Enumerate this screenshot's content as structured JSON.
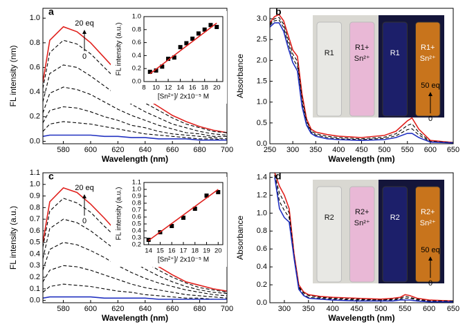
{
  "chart_data": [
    {
      "type": "line",
      "label": "a",
      "xlabel": "Wavelength (nm)",
      "ylabel": "FL intensity (nm)",
      "xlim": [
        565,
        700
      ],
      "xticks": [
        580,
        600,
        620,
        640,
        660,
        680,
        700
      ],
      "ylim": [
        -0.02,
        1.08
      ],
      "yticks": [
        {
          "value": 0,
          "label": "0.0"
        },
        0.2,
        0.4,
        0.6,
        0.8,
        {
          "value": 1,
          "label": "1.0"
        }
      ],
      "arrow": {
        "top": "20 eq",
        "bottom": "0"
      },
      "x": [
        565,
        570,
        580,
        590,
        600,
        610,
        620,
        630,
        640,
        650,
        660,
        670,
        680,
        690,
        700
      ],
      "series": [
        {
          "color": "#e0201c",
          "dash": false,
          "values": [
            0.48,
            0.82,
            0.93,
            0.89,
            0.8,
            0.68,
            0.56,
            0.45,
            0.35,
            0.28,
            0.21,
            0.16,
            0.12,
            0.09,
            0.07
          ]
        },
        {
          "color": "#000000",
          "dash": true,
          "values": [
            0.43,
            0.72,
            0.82,
            0.79,
            0.71,
            0.6,
            0.49,
            0.39,
            0.31,
            0.25,
            0.19,
            0.14,
            0.11,
            0.08,
            0.07
          ]
        },
        {
          "color": "#000000",
          "dash": true,
          "values": [
            0.32,
            0.55,
            0.62,
            0.6,
            0.53,
            0.45,
            0.37,
            0.3,
            0.24,
            0.19,
            0.14,
            0.11,
            0.08,
            0.06,
            0.05
          ]
        },
        {
          "color": "#000000",
          "dash": true,
          "values": [
            0.23,
            0.39,
            0.44,
            0.42,
            0.38,
            0.32,
            0.26,
            0.21,
            0.17,
            0.13,
            0.1,
            0.07,
            0.06,
            0.04,
            0.04
          ]
        },
        {
          "color": "#000000",
          "dash": true,
          "values": [
            0.15,
            0.25,
            0.28,
            0.27,
            0.24,
            0.2,
            0.17,
            0.13,
            0.11,
            0.08,
            0.06,
            0.05,
            0.04,
            0.03,
            0.02
          ]
        },
        {
          "color": "#000000",
          "dash": true,
          "values": [
            0.08,
            0.14,
            0.16,
            0.15,
            0.14,
            0.12,
            0.1,
            0.08,
            0.06,
            0.05,
            0.04,
            0.03,
            0.02,
            0.02,
            0.01
          ]
        },
        {
          "color": "#2030c0",
          "dash": false,
          "values": [
            0.04,
            0.05,
            0.05,
            0.05,
            0.05,
            0.04,
            0.04,
            0.03,
            0.03,
            0.02,
            0.02,
            0.02,
            0.01,
            0.01,
            0.01
          ]
        }
      ]
    },
    {
      "type": "scatter",
      "xlabel": "[Sn²⁺]/ 2x10⁻⁵ M",
      "ylabel": "FL intensity (a.u.)",
      "xlim": [
        8,
        21
      ],
      "xticks": [
        8,
        10,
        12,
        14,
        16,
        18,
        20
      ],
      "ylim": [
        0,
        1
      ],
      "yticks": [
        {
          "value": 0,
          "label": "0.0"
        },
        0.2,
        0.4,
        0.6,
        0.8,
        {
          "value": 1,
          "label": "1.0"
        }
      ],
      "series": [
        {
          "type": "scatter",
          "color": "#000000",
          "x": [
            9,
            10,
            11,
            12,
            13,
            14,
            15,
            16,
            17,
            18,
            19,
            20
          ],
          "values": [
            0.15,
            0.17,
            0.23,
            0.35,
            0.37,
            0.53,
            0.59,
            0.66,
            0.74,
            0.8,
            0.87,
            0.84
          ]
        },
        {
          "type": "line",
          "color": "#e0201c",
          "x": [
            9,
            20
          ],
          "values": [
            0.12,
            0.9
          ]
        }
      ]
    },
    {
      "type": "line",
      "label": "b",
      "xlabel": "Wavelength (nm)",
      "ylabel": "Absorbance",
      "xlim": [
        250,
        650
      ],
      "xticks": [
        250,
        300,
        350,
        400,
        450,
        500,
        550,
        600,
        650
      ],
      "ylim": [
        0,
        3.25
      ],
      "yticks": [
        {
          "value": 0,
          "label": "0.0"
        },
        0.5,
        {
          "value": 1,
          "label": "1.0"
        },
        1.5,
        {
          "value": 2,
          "label": "2.0"
        },
        2.5,
        {
          "value": 3,
          "label": "3.0"
        }
      ],
      "arrow": {
        "top": "50 eq",
        "bottom": "0"
      },
      "vials": [
        [
          "R1"
        ],
        [
          "R1+",
          "Sn²⁺"
        ],
        [
          "R1"
        ],
        [
          "R1+",
          "Sn²⁺"
        ]
      ],
      "x": [
        250,
        260,
        270,
        280,
        290,
        300,
        310,
        320,
        330,
        340,
        350,
        375,
        400,
        450,
        500,
        525,
        550,
        560,
        575,
        600,
        650
      ],
      "series": [
        {
          "color": "#e0201c",
          "dash": false,
          "values": [
            2.9,
            3.05,
            3.1,
            2.95,
            2.6,
            2.25,
            2.1,
            1.2,
            0.6,
            0.35,
            0.28,
            0.22,
            0.18,
            0.15,
            0.2,
            0.3,
            0.55,
            0.62,
            0.35,
            0.08,
            0.03
          ]
        },
        {
          "color": "#000000",
          "dash": true,
          "values": [
            2.87,
            3.0,
            3.03,
            2.87,
            2.5,
            2.15,
            1.98,
            1.1,
            0.55,
            0.31,
            0.24,
            0.18,
            0.15,
            0.12,
            0.16,
            0.24,
            0.44,
            0.48,
            0.27,
            0.06,
            0.03
          ]
        },
        {
          "color": "#000000",
          "dash": true,
          "values": [
            2.84,
            2.95,
            2.97,
            2.79,
            2.4,
            2.05,
            1.86,
            1.0,
            0.5,
            0.28,
            0.21,
            0.15,
            0.12,
            0.1,
            0.13,
            0.19,
            0.34,
            0.36,
            0.21,
            0.05,
            0.02
          ]
        },
        {
          "color": "#2030c0",
          "dash": false,
          "values": [
            2.8,
            2.9,
            2.9,
            2.7,
            2.3,
            1.95,
            1.75,
            0.9,
            0.45,
            0.25,
            0.18,
            0.12,
            0.1,
            0.08,
            0.1,
            0.15,
            0.25,
            0.25,
            0.15,
            0.04,
            0.02
          ]
        }
      ]
    },
    {
      "type": "line",
      "label": "c",
      "xlabel": "Wavelength (nm)",
      "ylabel": "FL intensity (a.u.)",
      "xlim": [
        565,
        700
      ],
      "xticks": [
        580,
        600,
        620,
        640,
        660,
        680,
        700
      ],
      "ylim": [
        -0.02,
        1.1
      ],
      "yticks": [
        {
          "value": 0,
          "label": "0.0"
        },
        0.1,
        0.2,
        0.3,
        0.4,
        0.5,
        0.6,
        0.7,
        0.8,
        0.9,
        {
          "value": 1,
          "label": "1.0"
        },
        1.1
      ],
      "arrow": {
        "top": "20 eq",
        "bottom": "0"
      },
      "x": [
        565,
        570,
        580,
        590,
        600,
        610,
        620,
        630,
        640,
        650,
        660,
        670,
        680,
        690,
        700
      ],
      "series": [
        {
          "color": "#e0201c",
          "dash": false,
          "values": [
            0.5,
            0.85,
            0.97,
            0.93,
            0.83,
            0.71,
            0.58,
            0.47,
            0.37,
            0.29,
            0.22,
            0.16,
            0.13,
            0.1,
            0.08
          ]
        },
        {
          "color": "#000000",
          "dash": true,
          "values": [
            0.46,
            0.77,
            0.88,
            0.84,
            0.76,
            0.64,
            0.53,
            0.42,
            0.33,
            0.26,
            0.2,
            0.15,
            0.11,
            0.09,
            0.07
          ]
        },
        {
          "color": "#000000",
          "dash": true,
          "values": [
            0.36,
            0.62,
            0.7,
            0.67,
            0.6,
            0.51,
            0.42,
            0.34,
            0.27,
            0.21,
            0.16,
            0.12,
            0.09,
            0.07,
            0.06
          ]
        },
        {
          "color": "#000000",
          "dash": true,
          "values": [
            0.26,
            0.44,
            0.5,
            0.48,
            0.43,
            0.37,
            0.3,
            0.24,
            0.19,
            0.15,
            0.12,
            0.09,
            0.07,
            0.05,
            0.04
          ]
        },
        {
          "color": "#000000",
          "dash": true,
          "values": [
            0.16,
            0.26,
            0.3,
            0.29,
            0.26,
            0.22,
            0.18,
            0.14,
            0.11,
            0.09,
            0.07,
            0.05,
            0.04,
            0.03,
            0.02
          ]
        },
        {
          "color": "#000000",
          "dash": true,
          "values": [
            0.07,
            0.12,
            0.14,
            0.13,
            0.12,
            0.1,
            0.08,
            0.07,
            0.05,
            0.04,
            0.03,
            0.02,
            0.02,
            0.01,
            0.01
          ]
        },
        {
          "color": "#2030c0",
          "dash": false,
          "values": [
            0.02,
            0.03,
            0.03,
            0.03,
            0.03,
            0.02,
            0.02,
            0.02,
            0.02,
            0.01,
            0.01,
            0.01,
            0.01,
            0.01,
            0.01
          ]
        }
      ]
    },
    {
      "type": "scatter",
      "xlabel": "[Sn²⁺]/ 2x10⁻⁵ M",
      "ylabel": "FL intensity (a.u.)",
      "xlim": [
        13.6,
        20.4
      ],
      "xticks": [
        14,
        15,
        16,
        17,
        18,
        19,
        20
      ],
      "ylim": [
        0.2,
        1.1
      ],
      "yticks": [
        0.2,
        0.3,
        0.4,
        0.5,
        0.6,
        0.7,
        0.8,
        0.9,
        {
          "value": 1,
          "label": "1.0"
        },
        1.1
      ],
      "series": [
        {
          "type": "scatter",
          "color": "#000000",
          "x": [
            14,
            15,
            16,
            17,
            18,
            19,
            20
          ],
          "values": [
            0.27,
            0.38,
            0.47,
            0.59,
            0.72,
            0.91,
            0.96
          ]
        },
        {
          "type": "line",
          "color": "#e0201c",
          "x": [
            14,
            20
          ],
          "values": [
            0.26,
            1.0
          ]
        }
      ]
    },
    {
      "type": "line",
      "label": "d",
      "xlabel": "Wavelength (nm)",
      "ylabel": "Absorbance",
      "xlim": [
        270,
        650
      ],
      "xticks": [
        300,
        350,
        400,
        450,
        500,
        550,
        600,
        650
      ],
      "ylim": [
        0,
        1.45
      ],
      "yticks": [
        {
          "value": 0,
          "label": "0.0"
        },
        0.2,
        0.4,
        0.6,
        0.8,
        {
          "value": 1,
          "label": "1.0"
        },
        1.2,
        1.4
      ],
      "arrow": {
        "top": "50 eq",
        "bottom": "0"
      },
      "vials": [
        [
          "R2"
        ],
        [
          "R2+",
          "Sn²⁺"
        ],
        [
          "R2"
        ],
        [
          "R2+",
          "Sn²⁺"
        ]
      ],
      "x": [
        280,
        290,
        300,
        310,
        320,
        330,
        340,
        350,
        375,
        400,
        450,
        500,
        525,
        540,
        550,
        560,
        575,
        600,
        650
      ],
      "series": [
        {
          "color": "#e0201c",
          "dash": false,
          "values": [
            1.45,
            1.3,
            1.2,
            1.05,
            0.55,
            0.2,
            0.12,
            0.09,
            0.07,
            0.06,
            0.05,
            0.04,
            0.05,
            0.06,
            0.09,
            0.08,
            0.05,
            0.03,
            0.02
          ]
        },
        {
          "color": "#000000",
          "dash": true,
          "values": [
            1.43,
            1.22,
            1.12,
            1.0,
            0.53,
            0.18,
            0.11,
            0.08,
            0.06,
            0.05,
            0.04,
            0.03,
            0.04,
            0.05,
            0.07,
            0.06,
            0.04,
            0.02,
            0.02
          ]
        },
        {
          "color": "#000000",
          "dash": true,
          "values": [
            1.42,
            1.13,
            1.03,
            0.95,
            0.52,
            0.17,
            0.09,
            0.06,
            0.05,
            0.04,
            0.03,
            0.03,
            0.03,
            0.04,
            0.05,
            0.05,
            0.03,
            0.02,
            0.01
          ]
        },
        {
          "color": "#2030c0",
          "dash": false,
          "values": [
            1.4,
            1.05,
            0.95,
            0.9,
            0.5,
            0.15,
            0.08,
            0.05,
            0.04,
            0.03,
            0.02,
            0.02,
            0.02,
            0.03,
            0.03,
            0.03,
            0.02,
            0.01,
            0.01
          ]
        }
      ]
    }
  ]
}
